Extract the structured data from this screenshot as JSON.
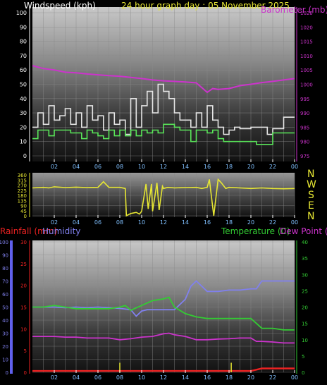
{
  "header": {
    "title": "24 hour graph day : 05 November 2025",
    "left_label": "Windspeed (kph)",
    "right_label": "Barometer (mb)"
  },
  "colors": {
    "background": "#000000",
    "plot_top": "#c8c8c8",
    "plot_bottom": "#1a1a1a",
    "grid": "#8a8a8a",
    "gust": "#e6e6e6",
    "wind": "#59e659",
    "pressure": "#cc33cc",
    "direction": "#e6e633",
    "rain": "#ee2222",
    "humidity": "#8080ee",
    "temperature": "#33cc33",
    "dewpoint": "#cc33cc",
    "title": "#e6e633",
    "axis_text": "#ffffff",
    "x_text": "#80c0ff"
  },
  "chart_data": [
    {
      "type": "line",
      "title": "24 hour graph day : 05 November 2025",
      "x_ticks": [
        "02",
        "04",
        "06",
        "08",
        "10",
        "12",
        "14",
        "16",
        "18",
        "20",
        "22",
        "00"
      ],
      "y_left": {
        "label": "Windspeed (kph)",
        "ylim": [
          0,
          100
        ],
        "ticks": [
          0,
          10,
          20,
          30,
          40,
          50,
          60,
          70,
          80,
          90,
          100
        ]
      },
      "y_right": {
        "label": "Barometer (mb)",
        "ylim": [
          975,
          1025
        ],
        "ticks": [
          975,
          980,
          985,
          990,
          995,
          1000,
          1005,
          1010,
          1015,
          1020,
          1025
        ]
      },
      "grid": true,
      "series": [
        {
          "axis": "left",
          "color": "#e6e6e6",
          "x": [
            0,
            0.5,
            1,
            1.5,
            2,
            2.5,
            3,
            3.5,
            4,
            4.5,
            5,
            5.5,
            6,
            6.5,
            7,
            7.5,
            8,
            8.5,
            9,
            9.5,
            10,
            10.5,
            11,
            11.5,
            12,
            12.5,
            13,
            13.5,
            14,
            14.5,
            15,
            15.5,
            16,
            16.5,
            17,
            17.5,
            18,
            18.5,
            19,
            19.5,
            20,
            20.5,
            21,
            21.5,
            22,
            22.5,
            23,
            23.5,
            24
          ],
          "values": [
            20,
            30,
            22,
            35,
            25,
            28,
            33,
            22,
            30,
            20,
            35,
            25,
            28,
            18,
            30,
            22,
            25,
            15,
            40,
            20,
            35,
            45,
            30,
            50,
            45,
            40,
            30,
            25,
            25,
            20,
            30,
            20,
            35,
            25,
            20,
            15,
            18,
            20,
            19,
            19,
            20,
            20,
            20,
            15,
            19,
            19,
            27,
            27,
            27
          ]
        },
        {
          "axis": "left",
          "color": "#59e659",
          "x": [
            0,
            0.5,
            1,
            1.5,
            2,
            2.5,
            3,
            3.5,
            4,
            4.5,
            5,
            5.5,
            6,
            6.5,
            7,
            7.5,
            8,
            8.5,
            9,
            9.5,
            10,
            10.5,
            11,
            11.5,
            12,
            12.5,
            13,
            13.5,
            14,
            14.5,
            15,
            15.5,
            16,
            16.5,
            17,
            17.5,
            18,
            18.5,
            19,
            19.5,
            20,
            20.5,
            21,
            21.5,
            22,
            22.5,
            23,
            23.5,
            24
          ],
          "values": [
            12,
            18,
            18,
            14,
            18,
            18,
            18,
            16,
            16,
            12,
            18,
            16,
            14,
            12,
            18,
            14,
            18,
            14,
            18,
            14,
            18,
            16,
            18,
            16,
            22,
            22,
            20,
            18,
            18,
            10,
            18,
            18,
            16,
            18,
            12,
            10,
            10,
            10,
            10,
            10,
            10,
            8,
            8,
            8,
            16,
            16,
            16,
            16,
            16
          ]
        },
        {
          "axis": "right",
          "color": "#cc33cc",
          "x": [
            0,
            1,
            2,
            3,
            4,
            5,
            6,
            7,
            8,
            9,
            10,
            11,
            12,
            13,
            14,
            15,
            16,
            16.5,
            17,
            18,
            19,
            20,
            21,
            22,
            23,
            24
          ],
          "values": [
            1006.5,
            1005.5,
            1005,
            1004.2,
            1004,
            1003.6,
            1003.3,
            1003,
            1002.8,
            1002.4,
            1002,
            1001.5,
            1001.2,
            1001,
            1000.8,
            1000.5,
            997.2,
            998.5,
            998.2,
            998.5,
            999.5,
            1000,
            1000.6,
            1001,
            1001.5,
            1002
          ]
        }
      ]
    },
    {
      "type": "line",
      "x_ticks": [
        "02",
        "04",
        "06",
        "08",
        "10",
        "12",
        "14",
        "16",
        "18",
        "20",
        "22",
        "00"
      ],
      "y_left": {
        "ylim": [
          0,
          360
        ],
        "ticks": [
          0,
          90,
          180,
          270,
          360
        ]
      },
      "y_right": {
        "labels": [
          "N",
          "W",
          "S",
          "E",
          "N"
        ]
      },
      "grid": true,
      "series": [
        {
          "axis": "left",
          "color": "#e6e633",
          "x": [
            0,
            1,
            1.5,
            2,
            3,
            4,
            5,
            6,
            6.5,
            7,
            7.5,
            8,
            8.5,
            8.6,
            9,
            9.5,
            9.8,
            10,
            10.4,
            10.6,
            10.9,
            11,
            11.4,
            11.6,
            11.9,
            12,
            12.4,
            13,
            14,
            15,
            15.5,
            16,
            16.2,
            16.6,
            17,
            17.3,
            17.7,
            18,
            19,
            20,
            21,
            22,
            23,
            24
          ],
          "values": [
            245,
            250,
            245,
            255,
            248,
            252,
            248,
            250,
            300,
            250,
            250,
            250,
            240,
            0,
            20,
            30,
            15,
            40,
            280,
            60,
            280,
            40,
            290,
            50,
            260,
            240,
            250,
            245,
            248,
            250,
            240,
            250,
            320,
            0,
            320,
            290,
            240,
            250,
            245,
            240,
            245,
            240,
            238,
            240
          ]
        }
      ]
    },
    {
      "type": "line",
      "left_label_1": "Rainfall (mm)",
      "left_label_2": "Humidity",
      "right_label": "Temperature (C)",
      "right_label_2": "Dew Point (C)",
      "x_ticks": [
        "02",
        "04",
        "06",
        "08",
        "10",
        "12",
        "14",
        "16",
        "18",
        "20",
        "22",
        "00"
      ],
      "y_humidity": {
        "ylim": [
          0,
          100
        ],
        "ticks": [
          0,
          10,
          20,
          30,
          40,
          50,
          60,
          70,
          80,
          90,
          100
        ]
      },
      "y_rain": {
        "ylim": [
          0,
          30
        ],
        "ticks": [
          0,
          5,
          10,
          15,
          20,
          25,
          30
        ]
      },
      "y_temp": {
        "ylim": [
          0,
          40
        ],
        "ticks": [
          0,
          5,
          10,
          15,
          20,
          25,
          30,
          35,
          40
        ]
      },
      "grid": true,
      "series": [
        {
          "axis": "humidity",
          "color": "#8080ee",
          "x": [
            0,
            1,
            2,
            3,
            4,
            5,
            6,
            7,
            8,
            9,
            9.5,
            10,
            10.5,
            11,
            12,
            13,
            14,
            14.5,
            15,
            15.5,
            16,
            17,
            18,
            19,
            20,
            20.5,
            21,
            22,
            23,
            24
          ],
          "values": [
            50,
            50,
            50,
            49.5,
            50,
            49.5,
            50,
            49.5,
            49,
            48,
            43,
            47,
            48,
            48,
            48,
            48,
            56,
            66,
            70,
            66,
            62,
            62,
            63,
            63,
            64,
            64,
            70,
            70,
            70,
            70
          ]
        },
        {
          "axis": "temp",
          "color": "#33cc33",
          "x": [
            0,
            1,
            2,
            3,
            4,
            5,
            6,
            7,
            8,
            8.5,
            9,
            10,
            11,
            12,
            12.5,
            13,
            14,
            15,
            16,
            17,
            18,
            19,
            20,
            20.5,
            21,
            22,
            23,
            24
          ],
          "values": [
            20,
            20,
            20.5,
            20,
            19.5,
            19.5,
            19.5,
            19.5,
            20,
            20.5,
            19,
            20.5,
            22,
            22.5,
            23,
            20,
            18,
            17,
            16.5,
            16.5,
            16.5,
            16.5,
            16.5,
            15,
            13.5,
            13.5,
            13,
            13
          ]
        },
        {
          "axis": "temp",
          "color": "#cc33cc",
          "x": [
            0,
            1,
            2,
            3,
            4,
            5,
            6,
            7,
            8,
            9,
            10,
            11,
            12,
            12.5,
            13,
            14,
            15,
            16,
            17,
            18,
            19,
            20,
            20.5,
            21,
            22,
            23,
            24
          ],
          "values": [
            11,
            11,
            11,
            10.8,
            10.8,
            10.5,
            10.5,
            10.5,
            10,
            10.3,
            10.8,
            11,
            11.8,
            12,
            11.5,
            11,
            10,
            10,
            10.2,
            10.3,
            10.5,
            10.5,
            9.5,
            9.5,
            9.3,
            9,
            9
          ]
        },
        {
          "axis": "rain",
          "color": "#ee2222",
          "x": [
            0,
            6,
            7,
            8,
            9,
            12,
            15,
            18,
            20,
            20.5,
            21,
            23,
            24
          ],
          "values": [
            0.3,
            0.3,
            0.3,
            0.3,
            0.3,
            0.3,
            0.3,
            0.3,
            0.3,
            0.6,
            0.9,
            0.9,
            0.9
          ]
        },
        {
          "axis": "rain",
          "type": "bar",
          "color": "#e6e633",
          "x": [
            8,
            18.2
          ],
          "values": [
            2.2,
            2.2
          ]
        }
      ]
    }
  ]
}
